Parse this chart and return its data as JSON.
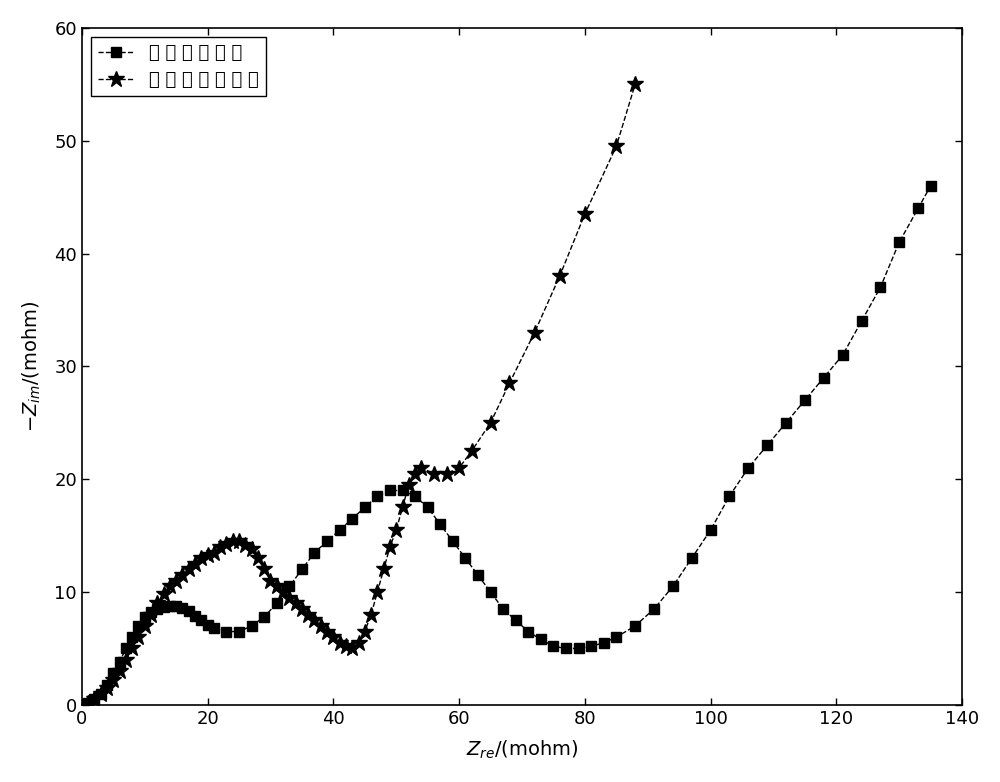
{
  "series1_label": "常 规 化 成 技 术",
  "series2_label": "本 发 明 化 成 技 术",
  "xlabel": "Z$_{re}$/(mohm)",
  "ylabel": "-Z$_{im}$/(mohm)",
  "xlim": [
    0,
    140
  ],
  "ylim": [
    0,
    60
  ],
  "xticks": [
    0,
    20,
    40,
    60,
    80,
    100,
    120,
    140
  ],
  "yticks": [
    0,
    10,
    20,
    30,
    40,
    50,
    60
  ],
  "series1_x": [
    1,
    2,
    3,
    4,
    5,
    6,
    7,
    8,
    9,
    10,
    11,
    12,
    13,
    14,
    15,
    16,
    17,
    18,
    19,
    20,
    21,
    23,
    25,
    27,
    29,
    31,
    33,
    35,
    37,
    39,
    41,
    43,
    45,
    47,
    49,
    51,
    53,
    55,
    57,
    59,
    61,
    63,
    65,
    67,
    69,
    71,
    73,
    75,
    77,
    79,
    81,
    83,
    85,
    88,
    91,
    94,
    97,
    100,
    103,
    106,
    109,
    112,
    115,
    118,
    121,
    124,
    127,
    130,
    133,
    135
  ],
  "series1_y": [
    0.2,
    0.5,
    1.0,
    1.8,
    2.8,
    3.8,
    5.0,
    6.0,
    7.0,
    7.8,
    8.2,
    8.5,
    8.7,
    8.8,
    8.8,
    8.6,
    8.3,
    7.9,
    7.5,
    7.1,
    6.8,
    6.5,
    6.5,
    7.0,
    7.8,
    9.0,
    10.5,
    12.0,
    13.5,
    14.5,
    15.5,
    16.5,
    17.5,
    18.5,
    19.0,
    19.0,
    18.5,
    17.5,
    16.0,
    14.5,
    13.0,
    11.5,
    10.0,
    8.5,
    7.5,
    6.5,
    5.8,
    5.2,
    5.0,
    5.0,
    5.2,
    5.5,
    6.0,
    7.0,
    8.5,
    10.5,
    13.0,
    15.5,
    18.5,
    21.0,
    23.0,
    25.0,
    27.0,
    29.0,
    31.0,
    34.0,
    37.0,
    41.0,
    44.0,
    46.0
  ],
  "series2_x": [
    1,
    2,
    3,
    4,
    5,
    6,
    7,
    8,
    9,
    10,
    11,
    12,
    13,
    14,
    15,
    16,
    17,
    18,
    19,
    20,
    21,
    22,
    23,
    24,
    25,
    26,
    27,
    28,
    29,
    30,
    31,
    32,
    33,
    34,
    35,
    36,
    37,
    38,
    39,
    40,
    41,
    42,
    43,
    44,
    45,
    46,
    47,
    48,
    49,
    50,
    51,
    52,
    53,
    54,
    56,
    58,
    60,
    62,
    65,
    68,
    72,
    76,
    80,
    85,
    88
  ],
  "series2_y": [
    0.2,
    0.5,
    1.0,
    1.5,
    2.2,
    3.0,
    4.0,
    5.0,
    6.0,
    7.0,
    8.0,
    9.0,
    9.8,
    10.5,
    11.0,
    11.5,
    12.0,
    12.5,
    13.0,
    13.3,
    13.5,
    14.0,
    14.3,
    14.5,
    14.5,
    14.2,
    13.8,
    13.0,
    12.0,
    11.0,
    10.5,
    10.0,
    9.5,
    9.0,
    8.5,
    8.0,
    7.5,
    7.0,
    6.5,
    6.0,
    5.5,
    5.2,
    5.0,
    5.5,
    6.5,
    8.0,
    10.0,
    12.0,
    14.0,
    15.5,
    17.5,
    19.5,
    20.5,
    21.0,
    20.5,
    20.5,
    21.0,
    22.5,
    25.0,
    28.5,
    33.0,
    38.0,
    43.5,
    49.5,
    55.0
  ],
  "line_color": "black",
  "line_style": "--",
  "line_width": 1.0,
  "marker_size": 7,
  "bg_color": "white",
  "title_fontsize": 14,
  "label_fontsize": 14,
  "tick_fontsize": 13,
  "legend_fontsize": 13
}
